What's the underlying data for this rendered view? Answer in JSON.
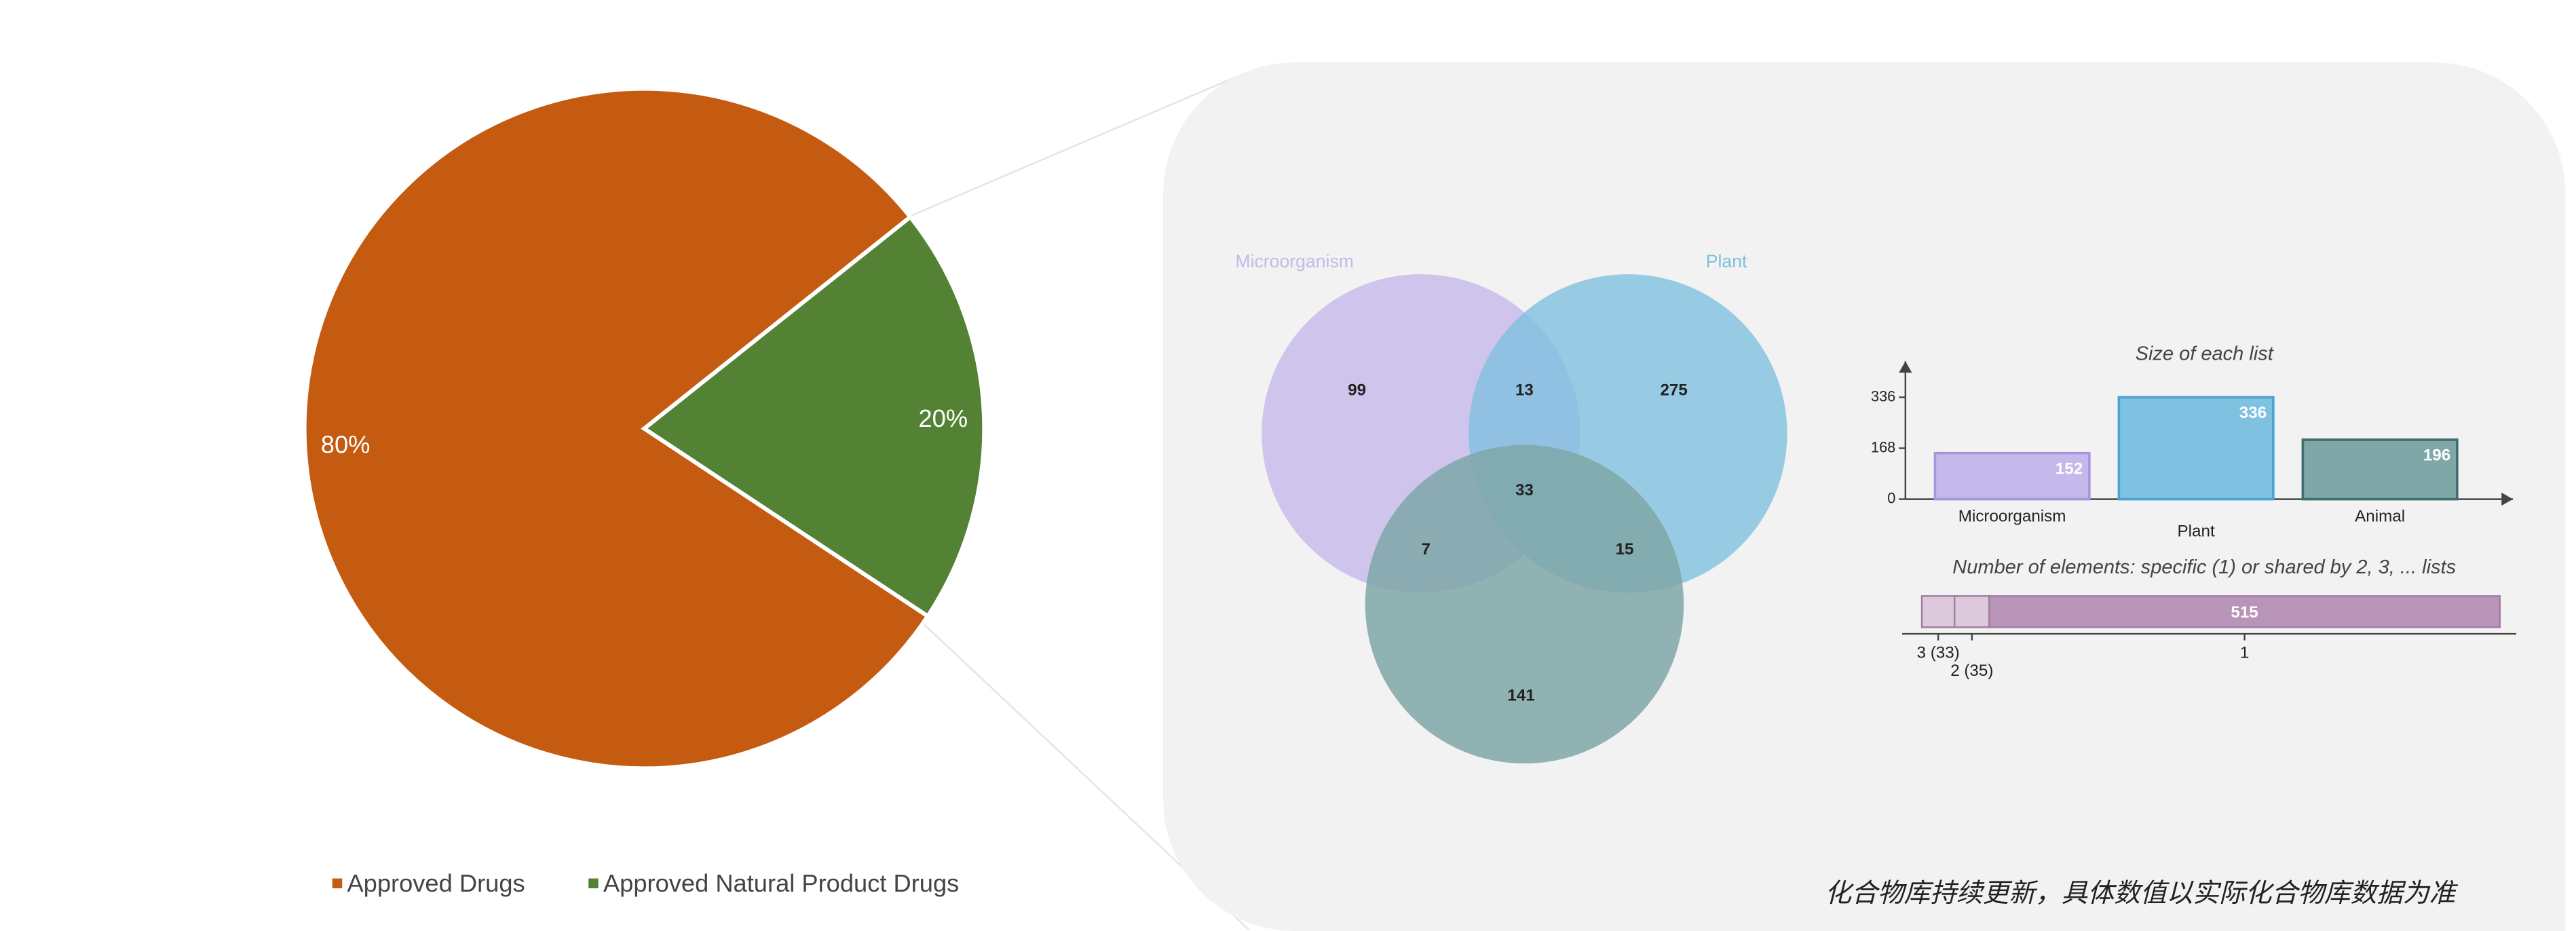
{
  "chart_data": [
    {
      "type": "pie",
      "categories": [
        "Approved Drugs",
        "Approved Natural Product Drugs"
      ],
      "values": [
        80,
        20
      ],
      "value_labels": [
        "80%",
        "20%"
      ],
      "colors": [
        "#c55a11",
        "#548235"
      ],
      "legend": "bottom"
    },
    {
      "type": "venn",
      "sets": [
        "Microorganism",
        "Plant",
        null
      ],
      "colors": [
        "#c5b8ea",
        "#7fc1e0",
        "#7fa7a8"
      ],
      "regions": [
        {
          "sets": [
            0
          ],
          "value": 99
        },
        {
          "sets": [
            1
          ],
          "value": 275
        },
        {
          "sets": [
            2
          ],
          "value": 141
        },
        {
          "sets": [
            0,
            1
          ],
          "value": 13
        },
        {
          "sets": [
            0,
            2
          ],
          "value": 7
        },
        {
          "sets": [
            1,
            2
          ],
          "value": 15
        },
        {
          "sets": [
            0,
            1,
            2
          ],
          "value": 33
        }
      ]
    },
    {
      "type": "bar",
      "title": "Size of each list",
      "categories": [
        "Microorganism",
        "Plant",
        "Animal"
      ],
      "values": [
        152,
        336,
        196
      ],
      "colors": [
        "#c5b8ea",
        "#7fc1e0",
        "#7fa7a8"
      ],
      "ylim": [
        0,
        455
      ],
      "yticks": [
        0,
        168,
        336
      ]
    },
    {
      "type": "stacked-hbar",
      "title": "Number of elements: specific (1) or shared by 2, 3, ... lists",
      "categories": [
        "3 (33)",
        "2 (35)",
        "1"
      ],
      "values": [
        33,
        35,
        515
      ],
      "colors": [
        "#dccadc",
        "#dccadc",
        "#b894b8"
      ],
      "xlim": [
        0,
        583
      ]
    }
  ],
  "note": "化合物库持续更新，具体数值以实际化合物库数据为准"
}
